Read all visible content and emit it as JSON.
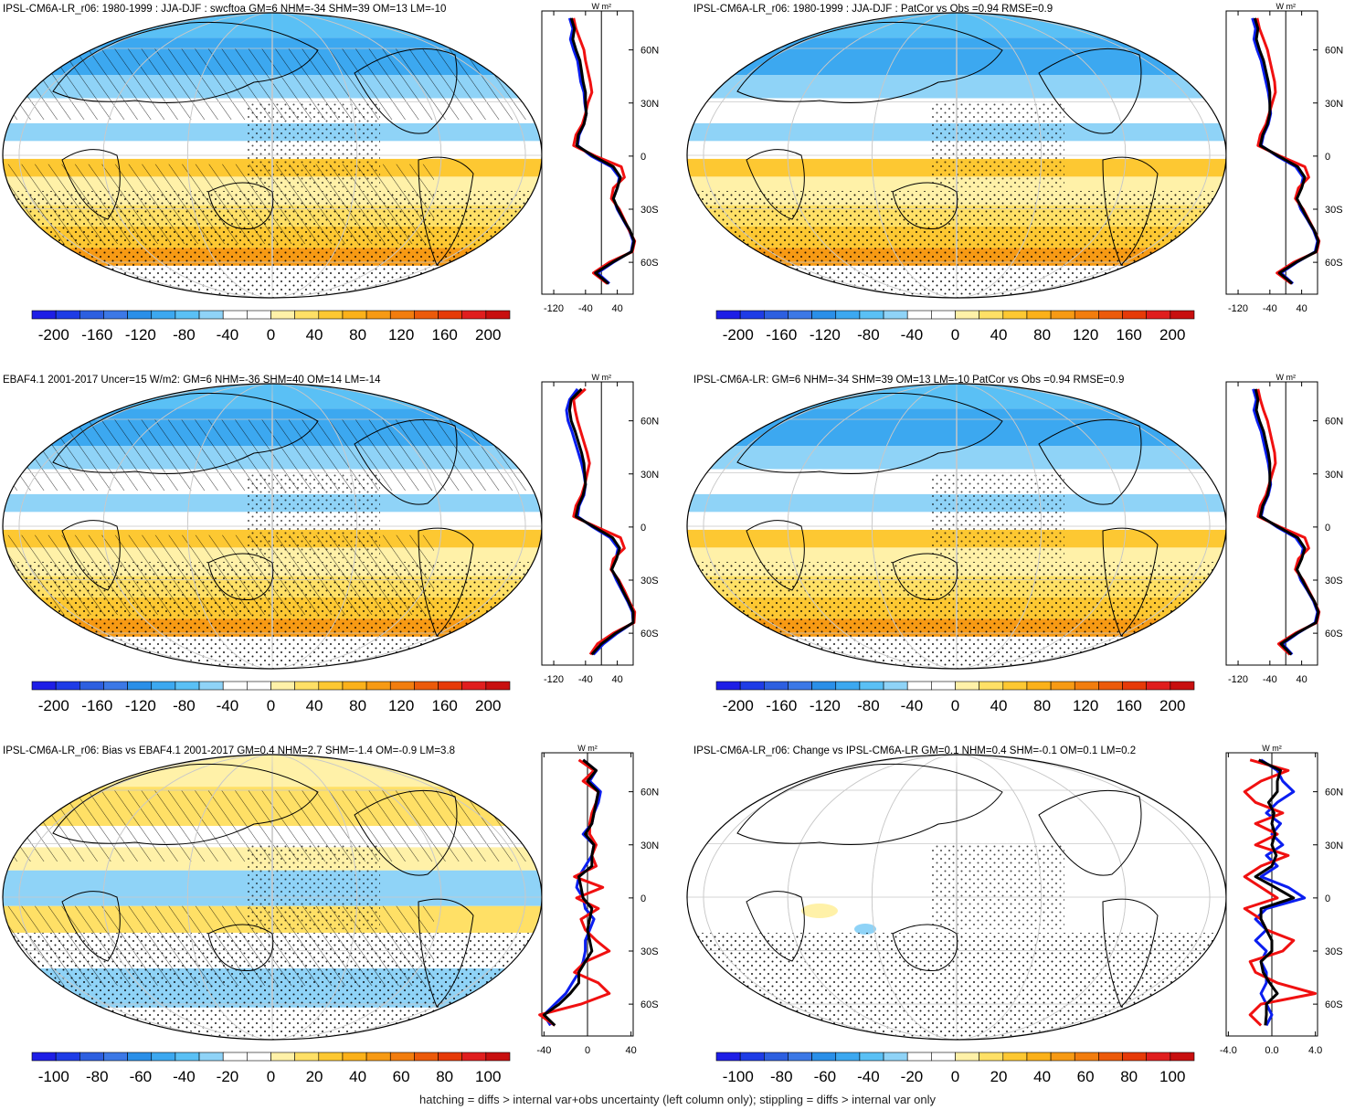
{
  "footer": "hatching = diffs > internal var+obs uncertainty (left column only); stippling = diffs > internal var only",
  "colors": {
    "blue_line": "#0a1ef0",
    "red_line": "#f01010",
    "black_line": "#000000",
    "grid": "#c8c8c8"
  },
  "chart_data": [
    {
      "type": "heatmap",
      "title": "IPSL-CM6A-LR_r06: 1980-1999 : JJA-DJF : swcftoa GM=6 NHM=-34 SHM=39 OM=13 LM=-10",
      "colorbar_ticks": [
        "-200",
        "-160",
        "-120",
        "-80",
        "-40",
        "0",
        "40",
        "80",
        "120",
        "160",
        "200"
      ],
      "colorbar_range": [
        -220,
        220
      ],
      "zonal": {
        "unit": "W m²",
        "xticks": [
          "-120",
          "-40",
          "40"
        ],
        "xlim": [
          -150,
          80
        ],
        "yticks": [
          "60N",
          "30N",
          "0",
          "30S",
          "60S"
        ],
        "lat": [
          78,
          72,
          66,
          60,
          54,
          48,
          42,
          36,
          30,
          24,
          18,
          12,
          6,
          0,
          -6,
          -12,
          -18,
          -24,
          -30,
          -36,
          -42,
          -48,
          -54,
          -60,
          -66,
          -72
        ],
        "series": [
          {
            "color": "blue",
            "values": [
              -80,
              -72,
              -78,
              -70,
              -60,
              -56,
              -52,
              -44,
              -42,
              -38,
              -44,
              -56,
              -60,
              -25,
              25,
              45,
              40,
              30,
              40,
              55,
              70,
              80,
              75,
              30,
              -10,
              20
            ]
          },
          {
            "color": "red",
            "values": [
              -70,
              -64,
              -54,
              -44,
              -40,
              -34,
              -28,
              -24,
              -34,
              -40,
              -48,
              -64,
              -70,
              -15,
              50,
              58,
              30,
              25,
              45,
              58,
              70,
              84,
              78,
              20,
              -20,
              15
            ]
          },
          {
            "color": "black",
            "values": [
              -76,
              -68,
              -72,
              -64,
              -54,
              -50,
              -46,
              -40,
              -40,
              -38,
              -44,
              -58,
              -62,
              -20,
              30,
              48,
              40,
              30,
              42,
              56,
              72,
              82,
              76,
              28,
              -15,
              18
            ]
          }
        ]
      }
    },
    {
      "type": "heatmap",
      "title": "IPSL-CM6A-LR_r06: 1980-1999 : JJA-DJF : PatCor vs Obs =0.94 RMSE=0.9",
      "colorbar_ticks": [
        "-200",
        "-160",
        "-120",
        "-80",
        "-40",
        "0",
        "40",
        "80",
        "120",
        "160",
        "200"
      ],
      "colorbar_range": [
        -220,
        220
      ],
      "zonal": {
        "unit": "W m²",
        "xticks": [
          "-120",
          "-40",
          "40"
        ],
        "xlim": [
          -150,
          80
        ],
        "yticks": [
          "60N",
          "30N",
          "0",
          "30S",
          "60S"
        ],
        "lat": [
          78,
          72,
          66,
          60,
          54,
          48,
          42,
          36,
          30,
          24,
          18,
          12,
          6,
          0,
          -6,
          -12,
          -18,
          -24,
          -30,
          -36,
          -42,
          -48,
          -54,
          -60,
          -66,
          -72
        ],
        "series": [
          {
            "color": "blue",
            "values": [
              -84,
              -76,
              -80,
              -72,
              -62,
              -56,
              -50,
              -44,
              -40,
              -38,
              -44,
              -56,
              -62,
              -22,
              25,
              44,
              38,
              28,
              38,
              55,
              70,
              80,
              74,
              28,
              -12,
              18
            ]
          },
          {
            "color": "red",
            "values": [
              -72,
              -66,
              -56,
              -46,
              -40,
              -34,
              -28,
              -26,
              -34,
              -42,
              -50,
              -64,
              -70,
              -14,
              48,
              58,
              32,
              24,
              44,
              58,
              72,
              84,
              78,
              20,
              -22,
              14
            ]
          },
          {
            "color": "black",
            "values": [
              -78,
              -70,
              -74,
              -66,
              -56,
              -50,
              -44,
              -40,
              -40,
              -40,
              -46,
              -58,
              -64,
              -18,
              30,
              48,
              40,
              28,
              42,
              56,
              72,
              82,
              76,
              26,
              -16,
              16
            ]
          }
        ]
      }
    },
    {
      "type": "heatmap",
      "title": "EBAF4.1 2001-2017 Uncer=15 W/m2: GM=6 NHM=-36 SHM=40 OM=14 LM=-14",
      "colorbar_ticks": [
        "-200",
        "-160",
        "-120",
        "-80",
        "-40",
        "0",
        "40",
        "80",
        "120",
        "160",
        "200"
      ],
      "colorbar_range": [
        -220,
        220
      ],
      "zonal": {
        "unit": "W m²",
        "xticks": [
          "-120",
          "-40",
          "40"
        ],
        "xlim": [
          -150,
          80
        ],
        "yticks": [
          "60N",
          "30N",
          "0",
          "30S",
          "60S"
        ],
        "lat": [
          78,
          72,
          66,
          60,
          54,
          48,
          42,
          36,
          30,
          24,
          18,
          12,
          6,
          0,
          -6,
          -12,
          -18,
          -24,
          -30,
          -36,
          -42,
          -48,
          -54,
          -60,
          -66,
          -72
        ],
        "series": [
          {
            "color": "blue",
            "values": [
              -60,
              -80,
              -88,
              -84,
              -74,
              -66,
              -58,
              -50,
              -44,
              -40,
              -44,
              -56,
              -60,
              -22,
              22,
              42,
              36,
              26,
              38,
              52,
              66,
              78,
              80,
              40,
              5,
              -20
            ]
          },
          {
            "color": "red",
            "values": [
              -40,
              -70,
              -66,
              -60,
              -52,
              -44,
              -36,
              -30,
              -36,
              -42,
              -50,
              -64,
              -70,
              -12,
              48,
              58,
              30,
              24,
              44,
              58,
              70,
              84,
              82,
              30,
              -10,
              -28
            ]
          },
          {
            "color": "black",
            "values": [
              -50,
              -76,
              -80,
              -76,
              -66,
              -58,
              -50,
              -44,
              -42,
              -40,
              -46,
              -58,
              -64,
              -18,
              28,
              46,
              38,
              26,
              42,
              54,
              68,
              80,
              80,
              36,
              0,
              -24
            ]
          }
        ]
      }
    },
    {
      "type": "heatmap",
      "title": "IPSL-CM6A-LR: GM=6 NHM=-34 SHM=39 OM=13 LM=-10 PatCor vs Obs =0.94 RMSE=0.9",
      "colorbar_ticks": [
        "-200",
        "-160",
        "-120",
        "-80",
        "-40",
        "0",
        "40",
        "80",
        "120",
        "160",
        "200"
      ],
      "colorbar_range": [
        -220,
        220
      ],
      "zonal": {
        "unit": "W m²",
        "xticks": [
          "-120",
          "-40",
          "40"
        ],
        "xlim": [
          -150,
          80
        ],
        "yticks": [
          "60N",
          "30N",
          "0",
          "30S",
          "60S"
        ],
        "lat": [
          78,
          72,
          66,
          60,
          54,
          48,
          42,
          36,
          30,
          24,
          18,
          12,
          6,
          0,
          -6,
          -12,
          -18,
          -24,
          -30,
          -36,
          -42,
          -48,
          -54,
          -60,
          -66,
          -72
        ],
        "series": [
          {
            "color": "blue",
            "values": [
              -82,
              -74,
              -80,
              -72,
              -62,
              -56,
              -50,
              -44,
              -40,
              -38,
              -44,
              -56,
              -62,
              -22,
              25,
              44,
              38,
              28,
              38,
              55,
              70,
              80,
              74,
              30,
              -8,
              16
            ]
          },
          {
            "color": "red",
            "values": [
              -70,
              -64,
              -56,
              -46,
              -40,
              -34,
              -28,
              -26,
              -34,
              -42,
              -50,
              -64,
              -70,
              -14,
              48,
              58,
              32,
              24,
              44,
              58,
              72,
              84,
              78,
              24,
              -18,
              10
            ]
          },
          {
            "color": "black",
            "values": [
              -76,
              -70,
              -74,
              -66,
              -56,
              -50,
              -44,
              -40,
              -40,
              -40,
              -46,
              -58,
              -64,
              -18,
              30,
              48,
              40,
              28,
              42,
              56,
              72,
              82,
              76,
              28,
              -12,
              14
            ]
          }
        ]
      }
    },
    {
      "type": "heatmap",
      "title": "IPSL-CM6A-LR_r06: Bias vs EBAF4.1 2001-2017 GM=0.4 NHM=2.7 SHM=-1.4 OM=-0.9 LM=3.8",
      "colorbar_ticks": [
        "-100",
        "-80",
        "-60",
        "-40",
        "-20",
        "0",
        "20",
        "40",
        "60",
        "80",
        "100"
      ],
      "colorbar_range": [
        -110,
        110
      ],
      "zonal": {
        "unit": "W m²",
        "xticks": [
          "-40",
          "0",
          "40"
        ],
        "xlim": [
          -42,
          42
        ],
        "yticks": [
          "60N",
          "30N",
          "0",
          "30S",
          "60S"
        ],
        "lat": [
          78,
          72,
          66,
          60,
          54,
          48,
          42,
          36,
          30,
          24,
          18,
          12,
          6,
          0,
          -6,
          -12,
          -18,
          -24,
          -30,
          -36,
          -42,
          -48,
          -54,
          -60,
          -66,
          -72
        ],
        "series": [
          {
            "color": "blue",
            "values": [
              -4,
              8,
              2,
              12,
              10,
              6,
              4,
              -4,
              6,
              4,
              -2,
              -8,
              -10,
              -4,
              -2,
              6,
              2,
              -2,
              -2,
              -4,
              -8,
              -14,
              -20,
              -30,
              -40,
              -34
            ]
          },
          {
            "color": "red",
            "values": [
              -8,
              6,
              -4,
              10,
              8,
              4,
              2,
              2,
              8,
              4,
              8,
              -12,
              14,
              -10,
              10,
              -6,
              -2,
              8,
              20,
              -2,
              -12,
              10,
              20,
              -6,
              -44,
              -30
            ]
          },
          {
            "color": "black",
            "values": [
              -4,
              8,
              0,
              10,
              8,
              6,
              4,
              -2,
              6,
              4,
              4,
              -8,
              -6,
              -4,
              4,
              2,
              0,
              2,
              4,
              -2,
              -8,
              -8,
              -16,
              -26,
              -40,
              -30
            ]
          }
        ]
      }
    },
    {
      "type": "heatmap",
      "title": "IPSL-CM6A-LR_r06: Change vs IPSL-CM6A-LR GM=0.1 NHM=0.4 SHM=-0.1 OM=0.1 LM=0.2",
      "colorbar_ticks": [
        "-100",
        "-80",
        "-60",
        "-40",
        "-20",
        "0",
        "20",
        "40",
        "60",
        "80",
        "100"
      ],
      "colorbar_range": [
        -110,
        110
      ],
      "zonal": {
        "unit": "W m²",
        "xticks": [
          "-4.0",
          "0.0",
          "4.0"
        ],
        "xlim": [
          -4.2,
          4.2
        ],
        "yticks": [
          "60N",
          "30N",
          "0",
          "30S",
          "60S"
        ],
        "lat": [
          78,
          72,
          66,
          60,
          54,
          48,
          42,
          36,
          30,
          24,
          18,
          12,
          6,
          0,
          -6,
          -12,
          -18,
          -24,
          -30,
          -36,
          -42,
          -48,
          -54,
          -60,
          -66,
          -72
        ],
        "series": [
          {
            "color": "blue",
            "values": [
              -1,
              0.5,
              1,
              2,
              0.5,
              -0.5,
              0.8,
              0,
              1,
              -0.5,
              0.5,
              -1,
              1.5,
              3,
              -0.5,
              -1.5,
              -0.5,
              -1.5,
              -0.5,
              -1,
              -0.5,
              -0.5,
              -1,
              -0.5,
              0,
              -0.5
            ]
          },
          {
            "color": "red",
            "values": [
              -2,
              1.5,
              -1,
              -2.5,
              -1.5,
              1,
              -1.5,
              0.5,
              -1.5,
              1.5,
              -1,
              -2.5,
              -1,
              0.5,
              -2.5,
              -1,
              -0.5,
              2,
              1,
              -2,
              -1.5,
              0.5,
              4,
              -1,
              -2,
              -1
            ]
          },
          {
            "color": "black",
            "values": [
              -1.2,
              0.8,
              0.5,
              0.5,
              -0.3,
              0.2,
              0,
              0.3,
              0,
              0.4,
              0,
              -1.5,
              0.3,
              2,
              -1,
              -1,
              -0.5,
              0,
              0,
              -1,
              -0.8,
              -0.2,
              0.5,
              -0.5,
              -0.5,
              -0.6
            ]
          }
        ]
      }
    }
  ]
}
